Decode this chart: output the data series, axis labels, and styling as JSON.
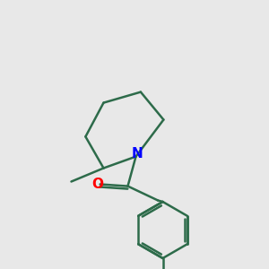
{
  "background_color": "#e8e8e8",
  "bond_color": "#2d6b4a",
  "N_color": "#0000ff",
  "O_color": "#ff0000",
  "bond_width": 1.8,
  "font_size": 11,
  "N_label": "N",
  "O_label": "O",
  "xlim": [
    0,
    10
  ],
  "ylim": [
    0,
    10
  ]
}
